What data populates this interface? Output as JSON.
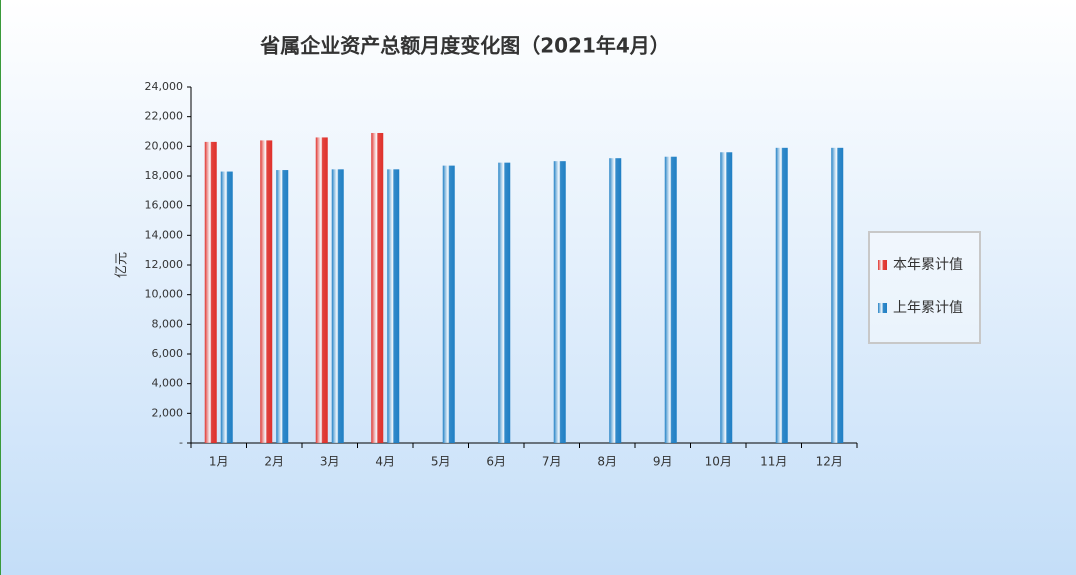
{
  "chart_data": {
    "type": "bar",
    "title": "省属企业资产总额月度变化图（2021年4月）",
    "y_label": "亿元",
    "categories": [
      "1月",
      "2月",
      "3月",
      "4月",
      "5月",
      "6月",
      "7月",
      "8月",
      "9月",
      "10月",
      "11月",
      "12月"
    ],
    "series": [
      {
        "name": "本年累计值",
        "color": "#e0302a",
        "values": [
          20300,
          20400,
          20600,
          20900,
          null,
          null,
          null,
          null,
          null,
          null,
          null,
          null
        ]
      },
      {
        "name": "上年累计值",
        "color": "#1f7fc4",
        "values": [
          18300,
          18400,
          18450,
          18450,
          18700,
          18900,
          19000,
          19200,
          19300,
          19600,
          19900,
          19900
        ]
      }
    ],
    "ylim": [
      0,
      24000
    ],
    "yticks": [
      {
        "value": 0,
        "label": "-"
      },
      {
        "value": 2000,
        "label": "2,000"
      },
      {
        "value": 4000,
        "label": "4,000"
      },
      {
        "value": 6000,
        "label": "6,000"
      },
      {
        "value": 8000,
        "label": "8,000"
      },
      {
        "value": 10000,
        "label": "10,000"
      },
      {
        "value": 12000,
        "label": "12,000"
      },
      {
        "value": 14000,
        "label": "14,000"
      },
      {
        "value": 16000,
        "label": "16,000"
      },
      {
        "value": 18000,
        "label": "18,000"
      },
      {
        "value": 20000,
        "label": "20,000"
      },
      {
        "value": 22000,
        "label": "22,000"
      },
      {
        "value": 24000,
        "label": "24,000"
      }
    ],
    "legend": "right"
  }
}
